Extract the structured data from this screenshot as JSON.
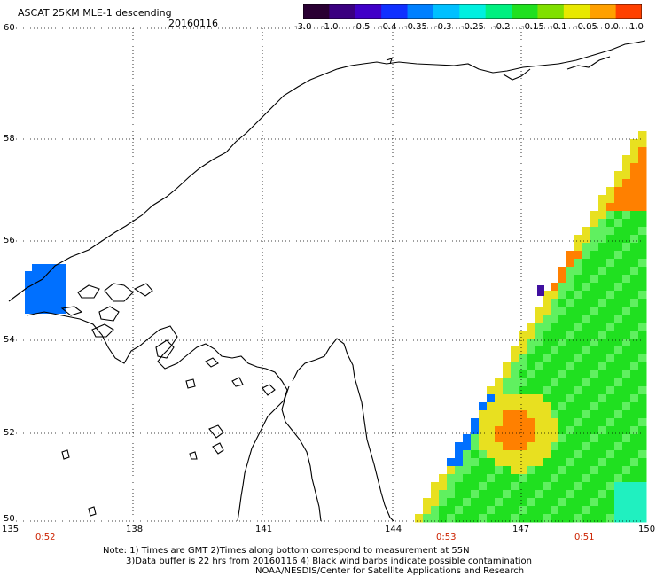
{
  "header": {
    "title": "ASCAT 25KM MLE-1 descending",
    "date": "20160116"
  },
  "colorbar": {
    "labels": [
      "-3.0",
      "-1.0",
      "-0.5",
      "-0.4",
      "-0.35",
      "-0.3",
      "-0.25",
      "-0.2",
      "-0.15",
      "-0.1",
      "-0.05",
      "0.0",
      "1.0"
    ],
    "colors": [
      "#2a0033",
      "#3a0080",
      "#4000c8",
      "#1030ff",
      "#0080ff",
      "#00c0ff",
      "#00f0e0",
      "#00f080",
      "#20e020",
      "#80e000",
      "#e8e800",
      "#ffa000",
      "#ff4000"
    ]
  },
  "map": {
    "lat_labels": [
      "60",
      "58",
      "56",
      "54",
      "52",
      "50"
    ],
    "lon_labels": [
      "135",
      "138",
      "141",
      "144",
      "147",
      "150"
    ],
    "time_labels": [
      "0:52",
      "0:53",
      "0:51"
    ],
    "time_color": "#cc2200",
    "land_color": "#ffffff",
    "coast_color": "#000000",
    "swath_colors": {
      "orange": "#ff8000",
      "yellow": "#e8e020",
      "green": "#20e020",
      "lightgreen": "#60f060",
      "cyan": "#20f0c0",
      "blue": "#0070ff",
      "purple": "#4010a0"
    }
  },
  "notes": {
    "line1": "Note: 1) Times are GMT 2)Times along bottom correspond to measurement at 55N",
    "line2": "3)Data buffer is 22 hrs from 20160116 4) Black wind barbs indicate possible contamination",
    "line3": "NOAA/NESDIS/Center for Satellite Applications and Research"
  }
}
